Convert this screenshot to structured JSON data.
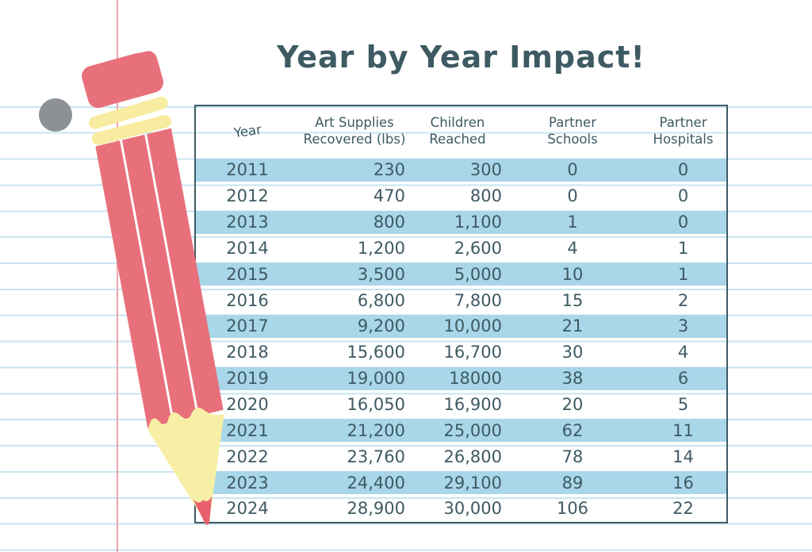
{
  "title": "Year by Year Impact!",
  "table": {
    "columns": [
      {
        "label": "Year"
      },
      {
        "label": "Art Supplies\nRecovered (lbs)"
      },
      {
        "label": "Children\nReached"
      },
      {
        "label": "Partner\nSchools"
      },
      {
        "label": "Partner\nHospitals"
      }
    ],
    "rows": [
      [
        "2011",
        "230",
        "300",
        "0",
        "0"
      ],
      [
        "2012",
        "470",
        "800",
        "0",
        "0"
      ],
      [
        "2013",
        "800",
        "1,100",
        "1",
        "0"
      ],
      [
        "2014",
        "1,200",
        "2,600",
        "4",
        "1"
      ],
      [
        "2015",
        "3,500",
        "5,000",
        "10",
        "1"
      ],
      [
        "2016",
        "6,800",
        "7,800",
        "15",
        "2"
      ],
      [
        "2017",
        "9,200",
        "10,000",
        "21",
        "3"
      ],
      [
        "2018",
        "15,600",
        "16,700",
        "30",
        "4"
      ],
      [
        "2019",
        "19,000",
        "18000",
        "38",
        "6"
      ],
      [
        "2020",
        "16,050",
        "16,900",
        "20",
        "5"
      ],
      [
        "2021",
        "21,200",
        "25,000",
        "62",
        "11"
      ],
      [
        "2022",
        "23,760",
        "26,800",
        "78",
        "14"
      ],
      [
        "2023",
        "24,400",
        "29,100",
        "89",
        "16"
      ],
      [
        "2024",
        "28,900",
        "30,000",
        "106",
        "22"
      ]
    ]
  },
  "chart_data": {
    "type": "table",
    "title": "Year by Year Impact!",
    "columns": [
      "Year",
      "Art Supplies Recovered (lbs)",
      "Children Reached",
      "Partner Schools",
      "Partner Hospitals"
    ],
    "rows": [
      [
        2011,
        230,
        300,
        0,
        0
      ],
      [
        2012,
        470,
        800,
        0,
        0
      ],
      [
        2013,
        800,
        1100,
        1,
        0
      ],
      [
        2014,
        1200,
        2600,
        4,
        1
      ],
      [
        2015,
        3500,
        5000,
        10,
        1
      ],
      [
        2016,
        6800,
        7800,
        15,
        2
      ],
      [
        2017,
        9200,
        10000,
        21,
        3
      ],
      [
        2018,
        15600,
        16700,
        30,
        4
      ],
      [
        2019,
        19000,
        18000,
        38,
        6
      ],
      [
        2020,
        16050,
        16900,
        20,
        5
      ],
      [
        2021,
        21200,
        25000,
        62,
        11
      ],
      [
        2022,
        23760,
        26800,
        78,
        14
      ],
      [
        2023,
        24400,
        29100,
        89,
        16
      ],
      [
        2024,
        28900,
        30000,
        106,
        22
      ]
    ],
    "layout": {
      "striped_rows": "odd rows highlighted blue",
      "gridlines": "none",
      "alignment": [
        "center",
        "right",
        "right",
        "center",
        "center"
      ]
    }
  },
  "colors": {
    "ink": "#3E5A63",
    "row_stripe_blue": "#A9D6E9",
    "ruled_line_blue": "#C8E5F1",
    "margin_line_pink": "#F4A6AD",
    "pencil_body_pink": "#E7707B",
    "pencil_band_yellow": "#F7EC9F",
    "pencil_wood_yellow": "#F6EFA5",
    "pencil_lead_pink": "#E85F6D",
    "hole_punch_gray": "#8D9196",
    "paper_white": "#FFFFFF"
  },
  "decor": {
    "pencil": "pencil-illustration",
    "hole": "hole-punch-dot",
    "margin_line": "notebook-margin-line",
    "ruled_lines": "notebook-ruled-lines"
  }
}
